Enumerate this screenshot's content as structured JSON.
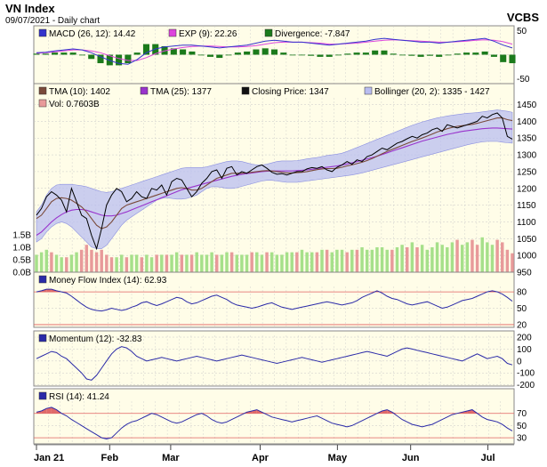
{
  "header": {
    "title": "VN Index",
    "subtitle": "09/07/2021 - Daily chart",
    "source": "VCBS"
  },
  "colors": {
    "panel_bg": "#fffde8",
    "grid": "#c8c8c8",
    "border": "#888888",
    "band_fill": "#b9bdf0",
    "band_edge": "#8a8fe0",
    "close_line": "#000000",
    "tma10": "#7a4a3a",
    "tma25": "#9933cc",
    "macd": "#3333cc",
    "exp": "#dd44dd",
    "divergence": "#1b7a1b",
    "vol_up": "#a6e08a",
    "vol_down": "#e89a9a",
    "osc_line": "#2a2aa8",
    "ob_fill": "#e06a6a",
    "os_fill": "#8a7fd8",
    "ref_line": "#e06060"
  },
  "chart_data": [
    {
      "type": "line",
      "panel": "macd",
      "legend": [
        {
          "label": "MACD (26, 12): 14.42",
          "color": "#3333cc"
        },
        {
          "label": "EXP (9): 22.26",
          "color": "#dd44dd"
        },
        {
          "label": "Divergence: -7.847",
          "color": "#1b7a1b"
        }
      ],
      "ylim": [
        -60,
        60
      ],
      "y_ticks": [
        50,
        -50
      ],
      "macd": [
        4,
        5,
        8,
        10,
        12,
        10,
        4,
        -4,
        -12,
        -18,
        -20,
        -10,
        4,
        12,
        16,
        18,
        20,
        20,
        18,
        16,
        14,
        16,
        18,
        20,
        24,
        28,
        30,
        28,
        26,
        26,
        24,
        22,
        20,
        22,
        24,
        26,
        28,
        32,
        34,
        32,
        30,
        28,
        26,
        26,
        24,
        26,
        28,
        30,
        32,
        34,
        28,
        20,
        14
      ],
      "exp": [
        3,
        4,
        6,
        8,
        10,
        10,
        8,
        4,
        -2,
        -8,
        -12,
        -12,
        -6,
        2,
        8,
        12,
        15,
        17,
        18,
        18,
        17,
        16,
        16,
        17,
        19,
        22,
        25,
        26,
        26,
        26,
        25,
        24,
        22,
        22,
        23,
        24,
        26,
        28,
        30,
        31,
        30,
        29,
        28,
        27,
        26,
        26,
        27,
        28,
        30,
        31,
        30,
        27,
        22
      ]
    },
    {
      "type": "line",
      "panel": "price",
      "legend": [
        {
          "label": "TMA (10): 1402",
          "color": "#7a4a3a"
        },
        {
          "label": "TMA (25): 1377",
          "color": "#9933cc"
        },
        {
          "label": "Closing Price: 1347",
          "color": "#000000"
        },
        {
          "label": "Bollinger (20, 2): 1335 - 1427",
          "color": "#b9bdf0"
        },
        {
          "label": "Vol: 0.7603B",
          "color": "#e89a9a"
        }
      ],
      "y_ticks": [
        1450,
        1400,
        1350,
        1300,
        1250,
        1200,
        1150,
        1100,
        1050,
        1000,
        950
      ],
      "ylim": [
        950,
        1470
      ],
      "vol_ticks": [
        "1.5B",
        "1.0B",
        "0.5B",
        "0.0B"
      ],
      "vol_ylim": [
        0,
        2.0
      ],
      "close": [
        1120,
        1140,
        1175,
        1190,
        1180,
        1165,
        1130,
        1200,
        1160,
        1120,
        1110,
        1060,
        1020,
        1080,
        1150,
        1180,
        1200,
        1190,
        1160,
        1170,
        1190,
        1175,
        1170,
        1200,
        1195,
        1210,
        1180,
        1220,
        1230,
        1225,
        1200,
        1175,
        1190,
        1215,
        1230,
        1250,
        1255,
        1230,
        1260,
        1265,
        1240,
        1250,
        1245,
        1255,
        1265,
        1270,
        1260,
        1248,
        1242,
        1244,
        1240,
        1245,
        1250,
        1250,
        1258,
        1262,
        1260,
        1265,
        1255,
        1250,
        1263,
        1270,
        1280,
        1272,
        1285,
        1280,
        1295,
        1300,
        1310,
        1320,
        1315,
        1325,
        1335,
        1340,
        1348,
        1355,
        1350,
        1360,
        1365,
        1375,
        1380,
        1370,
        1390,
        1385,
        1380,
        1385,
        1390,
        1395,
        1400,
        1415,
        1410,
        1420,
        1425,
        1410,
        1355,
        1347
      ],
      "tma10": [
        1110,
        1120,
        1140,
        1160,
        1170,
        1172,
        1170,
        1165,
        1155,
        1145,
        1130,
        1110,
        1090,
        1080,
        1085,
        1100,
        1120,
        1140,
        1150,
        1155,
        1160,
        1165,
        1170,
        1175,
        1180,
        1185,
        1190,
        1195,
        1200,
        1202,
        1200,
        1195,
        1195,
        1200,
        1210,
        1220,
        1230,
        1235,
        1240,
        1245,
        1245,
        1245,
        1246,
        1248,
        1250,
        1252,
        1253,
        1252,
        1250,
        1248,
        1246,
        1246,
        1247,
        1248,
        1250,
        1253,
        1256,
        1258,
        1259,
        1259,
        1260,
        1263,
        1267,
        1270,
        1274,
        1278,
        1283,
        1289,
        1296,
        1303,
        1310,
        1316,
        1322,
        1328,
        1334,
        1340,
        1345,
        1350,
        1356,
        1362,
        1368,
        1373,
        1378,
        1382,
        1385,
        1387,
        1389,
        1391,
        1394,
        1398,
        1402,
        1406,
        1410,
        1410,
        1405,
        1402
      ],
      "tma25": [
        1060,
        1070,
        1085,
        1100,
        1112,
        1122,
        1130,
        1135,
        1137,
        1137,
        1135,
        1130,
        1125,
        1120,
        1118,
        1118,
        1120,
        1125,
        1130,
        1136,
        1142,
        1148,
        1154,
        1160,
        1166,
        1172,
        1178,
        1184,
        1190,
        1196,
        1200,
        1204,
        1208,
        1212,
        1216,
        1220,
        1224,
        1228,
        1232,
        1236,
        1239,
        1242,
        1244,
        1246,
        1248,
        1250,
        1251,
        1252,
        1252,
        1252,
        1252,
        1252,
        1253,
        1254,
        1255,
        1257,
        1259,
        1261,
        1263,
        1265,
        1267,
        1270,
        1273,
        1276,
        1280,
        1284,
        1288,
        1292,
        1296,
        1301,
        1306,
        1311,
        1316,
        1321,
        1326,
        1331,
        1336,
        1341,
        1345,
        1349,
        1353,
        1357,
        1361,
        1364,
        1367,
        1370,
        1372,
        1374,
        1376,
        1378,
        1379,
        1380,
        1380,
        1379,
        1378,
        1377
      ],
      "boll_upper": [
        1130,
        1150,
        1180,
        1200,
        1210,
        1212,
        1212,
        1212,
        1210,
        1208,
        1205,
        1200,
        1195,
        1190,
        1188,
        1190,
        1195,
        1200,
        1205,
        1210,
        1215,
        1220,
        1225,
        1230,
        1235,
        1240,
        1245,
        1250,
        1255,
        1260,
        1262,
        1262,
        1262,
        1262,
        1264,
        1268,
        1272,
        1276,
        1280,
        1282,
        1282,
        1280,
        1276,
        1272,
        1270,
        1270,
        1272,
        1276,
        1280,
        1282,
        1282,
        1282,
        1283,
        1285,
        1288,
        1290,
        1292,
        1295,
        1298,
        1300,
        1302,
        1305,
        1310,
        1316,
        1322,
        1328,
        1334,
        1340,
        1346,
        1352,
        1358,
        1364,
        1370,
        1376,
        1382,
        1388,
        1393,
        1398,
        1402,
        1406,
        1410,
        1413,
        1416,
        1418,
        1420,
        1422,
        1424,
        1425,
        1426,
        1428,
        1430,
        1432,
        1434,
        1432,
        1430,
        1427
      ],
      "boll_lower": [
        1040,
        1050,
        1070,
        1085,
        1095,
        1100,
        1095,
        1085,
        1070,
        1055,
        1040,
        1025,
        1020,
        1020,
        1030,
        1050,
        1070,
        1090,
        1105,
        1115,
        1125,
        1135,
        1145,
        1155,
        1165,
        1170,
        1172,
        1170,
        1168,
        1168,
        1170,
        1175,
        1180,
        1190,
        1200,
        1205,
        1205,
        1203,
        1200,
        1200,
        1202,
        1206,
        1210,
        1214,
        1218,
        1222,
        1224,
        1224,
        1222,
        1220,
        1218,
        1218,
        1218,
        1220,
        1222,
        1224,
        1226,
        1228,
        1230,
        1232,
        1234,
        1236,
        1238,
        1240,
        1243,
        1246,
        1250,
        1254,
        1258,
        1262,
        1266,
        1270,
        1274,
        1278,
        1282,
        1286,
        1290,
        1294,
        1298,
        1302,
        1306,
        1310,
        1314,
        1318,
        1322,
        1326,
        1330,
        1333,
        1336,
        1339,
        1340,
        1340,
        1340,
        1338,
        1336,
        1335
      ],
      "volume": [
        0.7,
        0.8,
        0.9,
        0.8,
        0.7,
        0.6,
        0.6,
        0.7,
        0.8,
        0.9,
        1.1,
        0.9,
        0.8,
        0.9,
        0.7,
        0.6,
        0.6,
        0.7,
        0.6,
        0.7,
        0.7,
        0.6,
        0.7,
        0.6,
        0.7,
        0.7,
        0.7,
        0.7,
        0.8,
        0.7,
        0.7,
        0.7,
        0.8,
        0.7,
        0.7,
        0.8,
        0.7,
        0.7,
        0.8,
        0.8,
        0.7,
        0.7,
        0.7,
        0.8,
        0.8,
        0.7,
        0.8,
        0.8,
        0.7,
        0.7,
        0.8,
        0.8,
        0.8,
        0.9,
        0.8,
        0.8,
        0.8,
        0.9,
        0.9,
        0.8,
        0.9,
        0.9,
        0.8,
        0.9,
        0.9,
        1.0,
        0.9,
        0.9,
        1.0,
        1.0,
        0.9,
        0.9,
        1.0,
        1.1,
        1.0,
        1.2,
        1.0,
        1.1,
        0.9,
        1.0,
        1.2,
        1.1,
        1.0,
        1.2,
        1.3,
        1.1,
        1.2,
        1.3,
        1.1,
        1.4,
        1.2,
        1.1,
        1.3,
        1.2,
        0.9,
        0.76
      ],
      "volume_down": [
        3,
        6,
        9,
        10,
        11,
        12,
        13,
        14,
        15,
        18,
        21,
        24,
        26,
        29,
        31,
        36,
        39,
        43,
        46,
        52,
        56,
        58,
        62,
        64,
        71,
        74,
        76,
        84,
        87,
        88,
        92,
        93,
        94,
        95
      ]
    },
    {
      "type": "line",
      "panel": "mfi",
      "legend": [
        {
          "label": "Money Flow Index (14): 62.93",
          "color": "#2a2aa8"
        }
      ],
      "ylim": [
        15,
        90
      ],
      "y_ticks": [
        80,
        50,
        20
      ],
      "values": [
        80,
        82,
        85,
        85,
        82,
        80,
        78,
        72,
        65,
        58,
        52,
        48,
        46,
        45,
        47,
        50,
        48,
        46,
        48,
        52,
        55,
        60,
        62,
        58,
        55,
        58,
        62,
        66,
        70,
        68,
        62,
        58,
        60,
        64,
        68,
        72,
        74,
        70,
        66,
        60,
        56,
        54,
        52,
        50,
        52,
        55,
        58,
        60,
        56,
        52,
        50,
        48,
        50,
        52,
        54,
        56,
        58,
        60,
        62,
        60,
        58,
        56,
        58,
        60,
        64,
        70,
        74,
        78,
        82,
        78,
        72,
        68,
        66,
        62,
        58,
        56,
        58,
        60,
        62,
        58,
        54,
        50,
        52,
        56,
        60,
        64,
        66,
        68,
        72,
        76,
        80,
        82,
        80,
        76,
        70,
        62.93
      ]
    },
    {
      "type": "line",
      "panel": "momentum",
      "legend": [
        {
          "label": "Momentum (12): -32.83",
          "color": "#2a2aa8"
        }
      ],
      "ylim": [
        -210,
        215
      ],
      "y_ticks": [
        200,
        100,
        0,
        -100,
        -200
      ],
      "values": [
        20,
        40,
        60,
        80,
        70,
        40,
        20,
        -20,
        -60,
        -100,
        -150,
        -160,
        -120,
        -60,
        0,
        60,
        100,
        120,
        110,
        80,
        40,
        20,
        0,
        10,
        20,
        30,
        20,
        10,
        0,
        10,
        20,
        30,
        40,
        30,
        20,
        10,
        0,
        10,
        20,
        30,
        40,
        50,
        40,
        30,
        20,
        10,
        0,
        -10,
        -20,
        -10,
        0,
        10,
        20,
        30,
        20,
        10,
        0,
        -10,
        0,
        10,
        20,
        30,
        40,
        50,
        60,
        70,
        80,
        70,
        60,
        50,
        40,
        60,
        80,
        100,
        110,
        100,
        90,
        80,
        70,
        60,
        50,
        40,
        30,
        20,
        10,
        0,
        20,
        40,
        60,
        40,
        20,
        30,
        40,
        20,
        -20,
        -32.83
      ]
    },
    {
      "type": "line",
      "panel": "rsi",
      "legend": [
        {
          "label": "RSI (14): 41.24",
          "color": "#2a2aa8"
        }
      ],
      "ylim": [
        20,
        90
      ],
      "y_ticks": [
        70,
        50,
        30
      ],
      "values": [
        72,
        74,
        78,
        80,
        76,
        70,
        66,
        60,
        55,
        50,
        45,
        40,
        35,
        30,
        28,
        30,
        38,
        46,
        52,
        56,
        58,
        62,
        66,
        70,
        68,
        64,
        60,
        56,
        54,
        56,
        60,
        64,
        68,
        70,
        66,
        60,
        56,
        54,
        56,
        60,
        64,
        68,
        72,
        74,
        76,
        72,
        68,
        64,
        62,
        60,
        58,
        56,
        58,
        60,
        62,
        64,
        66,
        62,
        58,
        54,
        52,
        50,
        48,
        50,
        54,
        58,
        62,
        66,
        70,
        74,
        76,
        72,
        66,
        60,
        56,
        52,
        50,
        48,
        50,
        52,
        56,
        60,
        64,
        68,
        70,
        72,
        74,
        76,
        70,
        64,
        60,
        58,
        56,
        52,
        46,
        41.24
      ]
    }
  ],
  "x_axis": {
    "labels": [
      "Jan 21",
      "Feb",
      "Mar",
      "Apr",
      "May",
      "Jun",
      "Jul"
    ],
    "label_index": [
      0,
      18,
      33,
      55,
      74,
      92,
      111
    ]
  }
}
